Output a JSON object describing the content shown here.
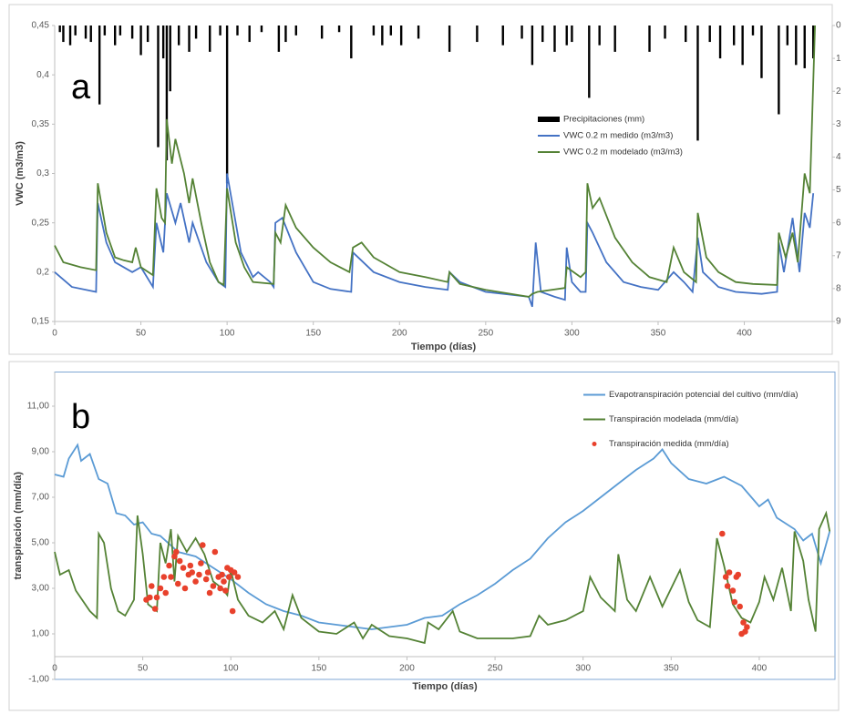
{
  "chart_data": [
    {
      "type": "line",
      "annotation": "a",
      "x_label": "Tiempo (días)",
      "y_label": "VWC (m3/m3)",
      "xlim": [
        0,
        451
      ],
      "xticks": [
        0,
        50,
        100,
        150,
        200,
        250,
        300,
        350,
        400
      ],
      "ylim": [
        0.15,
        0.45
      ],
      "yticks": [
        {
          "value": 0.15,
          "label": "0,15"
        },
        {
          "value": 0.2,
          "label": "0,2"
        },
        {
          "value": 0.25,
          "label": "0,25"
        },
        {
          "value": 0.3,
          "label": "0,3"
        },
        {
          "value": 0.35,
          "label": "0,35"
        },
        {
          "value": 0.4,
          "label": "0,4"
        },
        {
          "value": 0.45,
          "label": "0,45"
        }
      ],
      "y2lim": [
        0,
        9
      ],
      "y2_reversed": true,
      "y2ticks": [
        0,
        1,
        2,
        3,
        4,
        5,
        6,
        7,
        8,
        9
      ],
      "legend": "center right",
      "grid": false,
      "series": [
        {
          "name": "Precipitaciones (mm)",
          "type": "bar",
          "axis": "y2",
          "color": "#000000",
          "x": [
            3,
            5,
            9,
            12,
            18,
            21,
            26,
            29,
            35,
            38,
            45,
            50,
            54,
            60,
            63,
            65,
            67,
            72,
            78,
            82,
            90,
            96,
            100,
            106,
            113,
            120,
            130,
            134,
            140,
            155,
            165,
            172,
            185,
            190,
            195,
            201,
            211,
            229,
            245,
            260,
            271,
            277,
            283,
            290,
            297,
            300,
            310,
            316,
            325,
            345,
            354,
            366,
            373,
            380,
            386,
            394,
            399,
            405,
            410,
            420,
            425,
            430,
            435,
            440
          ],
          "values": [
            0.2,
            0.5,
            0.6,
            0.3,
            0.4,
            0.5,
            2.4,
            0.3,
            0.6,
            0.3,
            0.4,
            0.9,
            0.5,
            3.7,
            1.0,
            4.1,
            2.0,
            0.6,
            0.8,
            0.4,
            0.8,
            0.3,
            4.8,
            0.3,
            0.5,
            0.2,
            0.8,
            0.5,
            0.3,
            0.4,
            0.2,
            1.0,
            0.3,
            0.6,
            0.3,
            0.6,
            0.4,
            0.8,
            0.5,
            0.6,
            0.4,
            1.2,
            0.5,
            0.8,
            0.6,
            0.5,
            2.2,
            0.6,
            0.8,
            0.8,
            0.4,
            0.5,
            3.5,
            0.5,
            1.0,
            0.6,
            1.2,
            0.3,
            1.6,
            2.7,
            0.6,
            1.2,
            1.3,
            1.0
          ]
        },
        {
          "name": "VWC 0.2 m medido (m3/m3)",
          "color": "#4472c4",
          "x": [
            0,
            10,
            24,
            25,
            30,
            35,
            45,
            50,
            57,
            59,
            63,
            65,
            70,
            73,
            78,
            80,
            88,
            95,
            99,
            100,
            108,
            115,
            118,
            125,
            127,
            128,
            132,
            140,
            150,
            160,
            172,
            173,
            185,
            200,
            215,
            228,
            229,
            235,
            250,
            275,
            277,
            279,
            282,
            290,
            296,
            297,
            300,
            305,
            308,
            309,
            312,
            320,
            330,
            340,
            350,
            359,
            365,
            370,
            373,
            376,
            385,
            395,
            410,
            419,
            420,
            423,
            428,
            432,
            435,
            438,
            440
          ],
          "values": [
            0.2,
            0.185,
            0.18,
            0.27,
            0.23,
            0.21,
            0.2,
            0.205,
            0.185,
            0.25,
            0.22,
            0.28,
            0.25,
            0.27,
            0.23,
            0.25,
            0.21,
            0.19,
            0.185,
            0.3,
            0.22,
            0.195,
            0.2,
            0.19,
            0.185,
            0.25,
            0.255,
            0.22,
            0.19,
            0.183,
            0.18,
            0.22,
            0.2,
            0.19,
            0.185,
            0.182,
            0.2,
            0.19,
            0.18,
            0.175,
            0.165,
            0.23,
            0.18,
            0.175,
            0.172,
            0.225,
            0.19,
            0.18,
            0.18,
            0.25,
            0.24,
            0.21,
            0.19,
            0.185,
            0.182,
            0.2,
            0.19,
            0.18,
            0.235,
            0.2,
            0.185,
            0.18,
            0.178,
            0.18,
            0.23,
            0.2,
            0.255,
            0.2,
            0.26,
            0.245,
            0.28
          ]
        },
        {
          "name": "VWC 0.2 m modelado (m3/m3)",
          "color": "#548235",
          "x": [
            0,
            5,
            15,
            24,
            25,
            30,
            35,
            40,
            45,
            47,
            50,
            57,
            59,
            62,
            64,
            65,
            68,
            70,
            75,
            78,
            80,
            85,
            90,
            95,
            98,
            100,
            105,
            110,
            115,
            127,
            128,
            131,
            134,
            140,
            150,
            160,
            171,
            173,
            178,
            185,
            200,
            215,
            228,
            229,
            235,
            250,
            275,
            277,
            280,
            296,
            297,
            305,
            308,
            309,
            312,
            316,
            325,
            335,
            345,
            355,
            359,
            365,
            372,
            373,
            378,
            385,
            395,
            405,
            419,
            420,
            424,
            428,
            431,
            435,
            438,
            441
          ],
          "values": [
            0.227,
            0.21,
            0.205,
            0.202,
            0.29,
            0.24,
            0.215,
            0.212,
            0.21,
            0.225,
            0.205,
            0.197,
            0.285,
            0.255,
            0.25,
            0.355,
            0.31,
            0.335,
            0.3,
            0.27,
            0.295,
            0.25,
            0.21,
            0.19,
            0.187,
            0.285,
            0.23,
            0.205,
            0.19,
            0.188,
            0.24,
            0.23,
            0.268,
            0.245,
            0.225,
            0.21,
            0.2,
            0.225,
            0.23,
            0.215,
            0.2,
            0.195,
            0.19,
            0.2,
            0.188,
            0.182,
            0.175,
            0.178,
            0.18,
            0.184,
            0.205,
            0.195,
            0.2,
            0.29,
            0.265,
            0.275,
            0.235,
            0.21,
            0.195,
            0.19,
            0.225,
            0.2,
            0.19,
            0.26,
            0.215,
            0.2,
            0.19,
            0.188,
            0.187,
            0.24,
            0.215,
            0.24,
            0.21,
            0.3,
            0.28,
            0.45
          ]
        }
      ]
    },
    {
      "type": "line",
      "annotation": "b",
      "x_label": "Tiempo (días)",
      "y_label": "transpiración (mm/día)",
      "xlim": [
        0,
        443
      ],
      "xticks": [
        0,
        50,
        100,
        150,
        200,
        250,
        300,
        350,
        400
      ],
      "ylim": [
        -1,
        12.5
      ],
      "yticks": [
        {
          "value": -1,
          "label": "-1,00"
        },
        {
          "value": 1,
          "label": "1,00"
        },
        {
          "value": 3,
          "label": "3,00"
        },
        {
          "value": 5,
          "label": "5,00"
        },
        {
          "value": 7,
          "label": "7,00"
        },
        {
          "value": 9,
          "label": "9,00"
        },
        {
          "value": 11,
          "label": "11,00"
        }
      ],
      "legend": "upper right",
      "grid": false,
      "series": [
        {
          "name": "Evapotranspiración potencial del cultivo (mm/día)",
          "color": "#5b9bd5",
          "x": [
            0,
            5,
            8,
            13,
            15,
            20,
            25,
            30,
            35,
            40,
            45,
            50,
            55,
            60,
            70,
            80,
            90,
            100,
            110,
            120,
            130,
            140,
            150,
            160,
            170,
            180,
            190,
            200,
            210,
            220,
            230,
            240,
            250,
            260,
            270,
            280,
            290,
            300,
            310,
            320,
            330,
            340,
            345,
            350,
            360,
            370,
            380,
            390,
            400,
            405,
            410,
            420,
            425,
            430,
            435,
            440
          ],
          "values": [
            8.0,
            7.9,
            8.7,
            9.3,
            8.6,
            8.9,
            7.8,
            7.6,
            6.3,
            6.2,
            5.8,
            5.9,
            5.4,
            5.3,
            4.6,
            4.4,
            3.9,
            3.4,
            2.8,
            2.3,
            2.0,
            1.8,
            1.5,
            1.4,
            1.3,
            1.2,
            1.3,
            1.4,
            1.7,
            1.8,
            2.3,
            2.7,
            3.2,
            3.8,
            4.3,
            5.2,
            5.9,
            6.4,
            7.0,
            7.6,
            8.2,
            8.7,
            9.1,
            8.5,
            7.8,
            7.6,
            7.9,
            7.5,
            6.6,
            6.9,
            6.1,
            5.6,
            5.1,
            5.4,
            4.1,
            5.5
          ]
        },
        {
          "name": "Transpiración modelada (mm/día)",
          "color": "#548235",
          "x": [
            0,
            3,
            8,
            12,
            20,
            24,
            25,
            28,
            32,
            36,
            40,
            45,
            47,
            50,
            53,
            58,
            60,
            63,
            66,
            68,
            70,
            75,
            80,
            85,
            90,
            95,
            98,
            100,
            104,
            110,
            118,
            125,
            130,
            135,
            140,
            150,
            160,
            170,
            175,
            180,
            190,
            200,
            210,
            212,
            218,
            226,
            230,
            240,
            250,
            260,
            270,
            275,
            280,
            290,
            300,
            304,
            310,
            318,
            320,
            325,
            330,
            338,
            345,
            355,
            360,
            365,
            372,
            376,
            380,
            385,
            390,
            395,
            400,
            403,
            408,
            413,
            418,
            420,
            425,
            428,
            432,
            434,
            438,
            440
          ],
          "values": [
            4.6,
            3.6,
            3.8,
            2.9,
            2.0,
            1.7,
            5.4,
            5.0,
            3.0,
            2.0,
            1.8,
            2.5,
            6.2,
            4.5,
            2.3,
            2.0,
            5.0,
            4.1,
            5.6,
            3.3,
            5.3,
            4.6,
            5.2,
            4.5,
            3.3,
            3.0,
            2.7,
            3.8,
            2.5,
            1.8,
            1.5,
            2.0,
            1.2,
            2.7,
            1.7,
            1.1,
            1.0,
            1.5,
            0.8,
            1.4,
            0.9,
            0.8,
            0.6,
            1.5,
            1.2,
            2.0,
            1.1,
            0.8,
            0.8,
            0.8,
            0.9,
            1.8,
            1.4,
            1.6,
            2.0,
            3.5,
            2.6,
            2.0,
            4.5,
            2.5,
            2.0,
            3.5,
            2.2,
            3.8,
            2.4,
            1.6,
            1.3,
            5.2,
            4.0,
            2.3,
            1.7,
            1.5,
            2.4,
            3.5,
            2.5,
            3.9,
            2.0,
            5.5,
            4.2,
            2.5,
            1.1,
            5.6,
            6.3,
            5.5
          ]
        },
        {
          "name": "Transpiración medida (mm/día)",
          "type": "scatter",
          "color": "#e8412c",
          "x": [
            52,
            54,
            55,
            57,
            58,
            60,
            62,
            63,
            65,
            66,
            68,
            69,
            70,
            71,
            73,
            74,
            76,
            77,
            78,
            80,
            82,
            83,
            84,
            86,
            87,
            88,
            90,
            91,
            93,
            94,
            95,
            96,
            97,
            98,
            99,
            100,
            101,
            102,
            104,
            379,
            381,
            382,
            383,
            385,
            386,
            387,
            388,
            389,
            390,
            391,
            392,
            393
          ],
          "values": [
            2.5,
            2.6,
            3.1,
            2.1,
            2.6,
            3.0,
            3.5,
            2.8,
            4.0,
            3.5,
            4.4,
            4.6,
            3.2,
            4.2,
            3.9,
            3.0,
            3.6,
            4.0,
            3.7,
            3.3,
            3.6,
            4.1,
            4.9,
            3.4,
            3.7,
            2.8,
            3.1,
            4.6,
            3.5,
            3.0,
            3.6,
            3.3,
            2.9,
            3.9,
            3.5,
            3.8,
            2.0,
            3.7,
            3.5,
            5.4,
            3.5,
            3.1,
            3.7,
            2.9,
            2.4,
            3.5,
            3.6,
            2.2,
            1.0,
            1.5,
            1.1,
            1.3
          ]
        }
      ]
    }
  ]
}
